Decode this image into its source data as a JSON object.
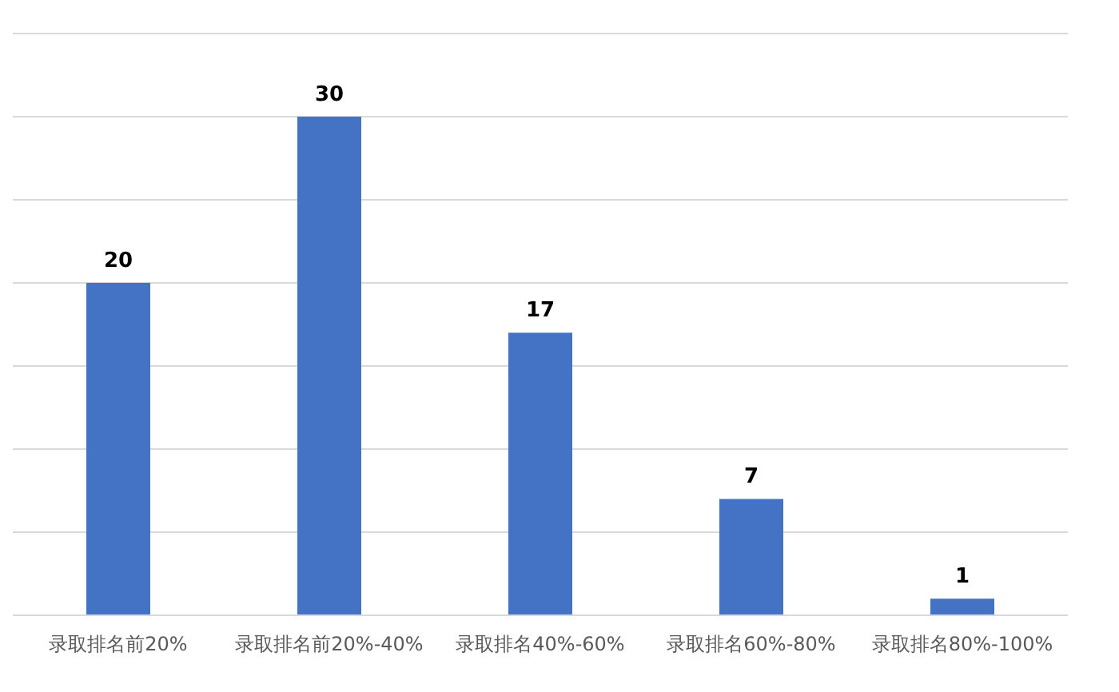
{
  "chart_data": {
    "type": "bar",
    "categories": [
      "录取排名前20%",
      "录取排名前20%-40%",
      "录取排名40%-60%",
      "录取排名60%-80%",
      "录取排名80%-100%"
    ],
    "values": [
      20,
      30,
      17,
      7,
      1
    ],
    "color": "#4472c4",
    "data_labels": true,
    "grid": "y",
    "tick_labels": "x",
    "ylim": [
      0,
      35
    ],
    "yticks": [
      {
        "value": 0,
        "label": null
      },
      {
        "value": 5,
        "label": null
      },
      {
        "value": 10,
        "label": null
      },
      {
        "value": 15,
        "label": null
      },
      {
        "value": 20,
        "label": null
      },
      {
        "value": 25,
        "label": null
      },
      {
        "value": 30,
        "label": null
      },
      {
        "value": 35,
        "label": null
      }
    ]
  }
}
